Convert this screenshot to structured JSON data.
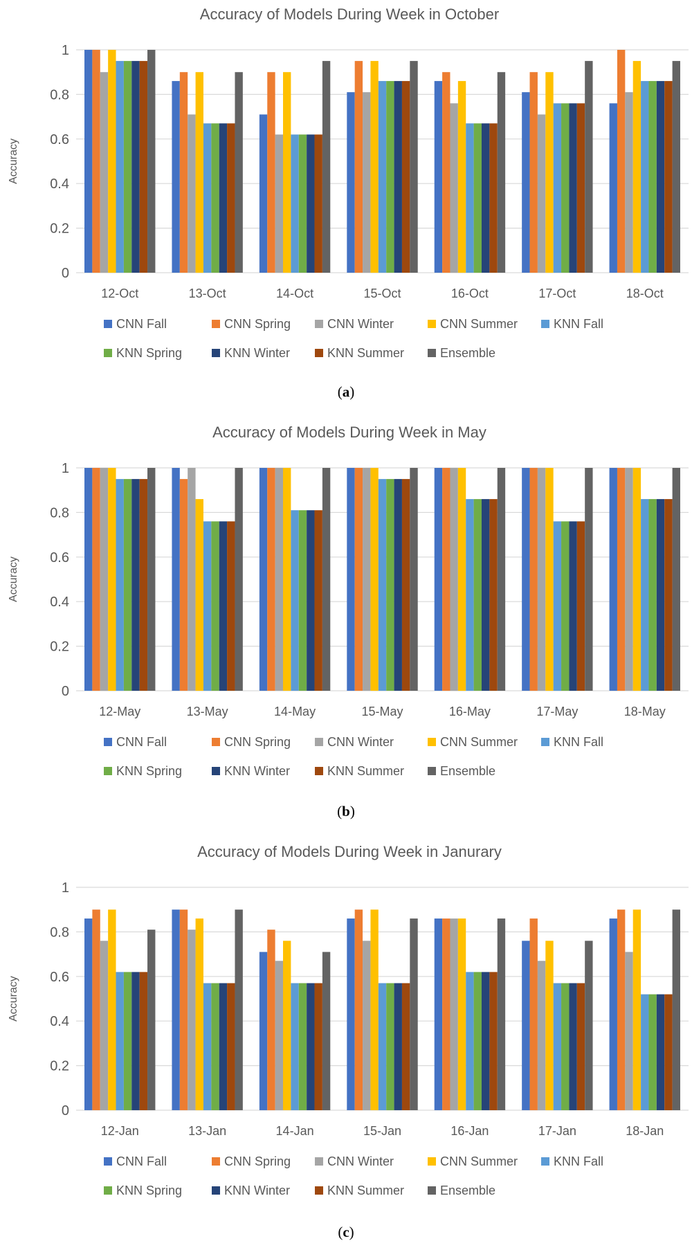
{
  "legend": [
    "CNN Fall",
    "CNN Spring",
    "CNN Winter",
    "CNN Summer",
    "KNN Fall",
    "KNN Spring",
    "KNN Winter",
    "KNN Summer",
    "Ensemble"
  ],
  "series_colors": [
    "#4472C4",
    "#ED7D31",
    "#A5A5A5",
    "#FFC000",
    "#5B9BD5",
    "#70AD47",
    "#264478",
    "#9E480E",
    "#636363"
  ],
  "chart_data": [
    {
      "type": "bar",
      "title": "Accuracy of Models During Week in October",
      "ylabel": "Accuracy",
      "xlabel": "",
      "ylim": [
        0,
        1
      ],
      "yticks": [
        "0",
        "0.2",
        "0.4",
        "0.6",
        "0.8",
        "1"
      ],
      "caption_letter": "a",
      "categories": [
        "12-Oct",
        "13-Oct",
        "14-Oct",
        "15-Oct",
        "16-Oct",
        "17-Oct",
        "18-Oct"
      ],
      "series": [
        {
          "name": "CNN Fall",
          "values": [
            1.0,
            0.86,
            0.71,
            0.81,
            0.86,
            0.81,
            0.76
          ]
        },
        {
          "name": "CNN Spring",
          "values": [
            1.0,
            0.9,
            0.9,
            0.95,
            0.9,
            0.9,
            1.0
          ]
        },
        {
          "name": "CNN Winter",
          "values": [
            0.9,
            0.71,
            0.62,
            0.81,
            0.76,
            0.71,
            0.81
          ]
        },
        {
          "name": "CNN Summer",
          "values": [
            1.0,
            0.9,
            0.9,
            0.95,
            0.86,
            0.9,
            0.95
          ]
        },
        {
          "name": "KNN Fall",
          "values": [
            0.95,
            0.67,
            0.62,
            0.86,
            0.67,
            0.76,
            0.86
          ]
        },
        {
          "name": "KNN Spring",
          "values": [
            0.95,
            0.67,
            0.62,
            0.86,
            0.67,
            0.76,
            0.86
          ]
        },
        {
          "name": "KNN Winter",
          "values": [
            0.95,
            0.67,
            0.62,
            0.86,
            0.67,
            0.76,
            0.86
          ]
        },
        {
          "name": "KNN Summer",
          "values": [
            0.95,
            0.67,
            0.62,
            0.86,
            0.67,
            0.76,
            0.86
          ]
        },
        {
          "name": "Ensemble",
          "values": [
            1.0,
            0.9,
            0.95,
            0.95,
            0.9,
            0.95,
            0.95
          ]
        }
      ]
    },
    {
      "type": "bar",
      "title": "Accuracy of Models During Week in May",
      "ylabel": "Accuracy",
      "xlabel": "",
      "ylim": [
        0,
        1
      ],
      "yticks": [
        "0",
        "0.2",
        "0.4",
        "0.6",
        "0.8",
        "1"
      ],
      "caption_letter": "b",
      "categories": [
        "12-May",
        "13-May",
        "14-May",
        "15-May",
        "16-May",
        "17-May",
        "18-May"
      ],
      "series": [
        {
          "name": "CNN Fall",
          "values": [
            1.0,
            1.0,
            1.0,
            1.0,
            1.0,
            1.0,
            1.0
          ]
        },
        {
          "name": "CNN Spring",
          "values": [
            1.0,
            0.95,
            1.0,
            1.0,
            1.0,
            1.0,
            1.0
          ]
        },
        {
          "name": "CNN Winter",
          "values": [
            1.0,
            1.0,
            1.0,
            1.0,
            1.0,
            1.0,
            1.0
          ]
        },
        {
          "name": "CNN Summer",
          "values": [
            1.0,
            0.86,
            1.0,
            1.0,
            1.0,
            1.0,
            1.0
          ]
        },
        {
          "name": "KNN Fall",
          "values": [
            0.95,
            0.76,
            0.81,
            0.95,
            0.86,
            0.76,
            0.86
          ]
        },
        {
          "name": "KNN Spring",
          "values": [
            0.95,
            0.76,
            0.81,
            0.95,
            0.86,
            0.76,
            0.86
          ]
        },
        {
          "name": "KNN Winter",
          "values": [
            0.95,
            0.76,
            0.81,
            0.95,
            0.86,
            0.76,
            0.86
          ]
        },
        {
          "name": "KNN Summer",
          "values": [
            0.95,
            0.76,
            0.81,
            0.95,
            0.86,
            0.76,
            0.86
          ]
        },
        {
          "name": "Ensemble",
          "values": [
            1.0,
            1.0,
            1.0,
            1.0,
            1.0,
            1.0,
            1.0
          ]
        }
      ]
    },
    {
      "type": "bar",
      "title": "Accuracy of Models During Week in Janurary",
      "ylabel": "Accuracy",
      "xlabel": "",
      "ylim": [
        0,
        1
      ],
      "yticks": [
        "0",
        "0.2",
        "0.4",
        "0.6",
        "0.8",
        "1"
      ],
      "caption_letter": "c",
      "categories": [
        "12-Jan",
        "13-Jan",
        "14-Jan",
        "15-Jan",
        "16-Jan",
        "17-Jan",
        "18-Jan"
      ],
      "series": [
        {
          "name": "CNN Fall",
          "values": [
            0.86,
            0.9,
            0.71,
            0.86,
            0.86,
            0.76,
            0.86
          ]
        },
        {
          "name": "CNN Spring",
          "values": [
            0.9,
            0.9,
            0.81,
            0.9,
            0.86,
            0.86,
            0.9
          ]
        },
        {
          "name": "CNN Winter",
          "values": [
            0.76,
            0.81,
            0.67,
            0.76,
            0.86,
            0.67,
            0.71
          ]
        },
        {
          "name": "CNN Summer",
          "values": [
            0.9,
            0.86,
            0.76,
            0.9,
            0.86,
            0.76,
            0.9
          ]
        },
        {
          "name": "KNN Fall",
          "values": [
            0.62,
            0.57,
            0.57,
            0.57,
            0.62,
            0.57,
            0.52
          ]
        },
        {
          "name": "KNN Spring",
          "values": [
            0.62,
            0.57,
            0.57,
            0.57,
            0.62,
            0.57,
            0.52
          ]
        },
        {
          "name": "KNN Winter",
          "values": [
            0.62,
            0.57,
            0.57,
            0.57,
            0.62,
            0.57,
            0.52
          ]
        },
        {
          "name": "KNN Summer",
          "values": [
            0.62,
            0.57,
            0.57,
            0.57,
            0.62,
            0.57,
            0.52
          ]
        },
        {
          "name": "Ensemble",
          "values": [
            0.81,
            0.9,
            0.71,
            0.86,
            0.86,
            0.76,
            0.9
          ]
        }
      ]
    }
  ]
}
